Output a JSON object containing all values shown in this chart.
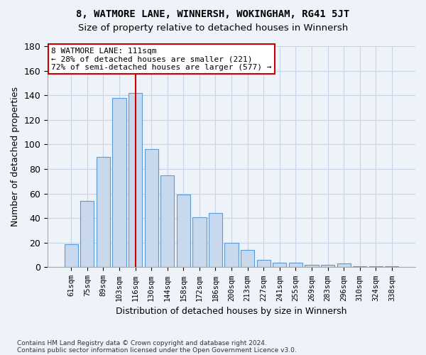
{
  "title1": "8, WATMORE LANE, WINNERSH, WOKINGHAM, RG41 5JT",
  "title2": "Size of property relative to detached houses in Winnersh",
  "xlabel": "Distribution of detached houses by size in Winnersh",
  "ylabel": "Number of detached properties",
  "categories": [
    "61sqm",
    "75sqm",
    "89sqm",
    "103sqm",
    "116sqm",
    "130sqm",
    "144sqm",
    "158sqm",
    "172sqm",
    "186sqm",
    "200sqm",
    "213sqm",
    "227sqm",
    "241sqm",
    "255sqm",
    "269sqm",
    "283sqm",
    "296sqm",
    "310sqm",
    "324sqm",
    "338sqm"
  ],
  "values": [
    19,
    54,
    90,
    138,
    142,
    96,
    75,
    59,
    41,
    44,
    20,
    14,
    6,
    4,
    4,
    2,
    2,
    3,
    1,
    1,
    1
  ],
  "bar_color": "#c9d9ed",
  "bar_edge_color": "#5b9bd5",
  "vline_x": 4,
  "annotation_line1": "8 WATMORE LANE: 111sqm",
  "annotation_line2": "← 28% of detached houses are smaller (221)",
  "annotation_line3": "72% of semi-detached houses are larger (577) →",
  "annotation_box_color": "#ffffff",
  "annotation_box_edge": "#cc0000",
  "vline_color": "#cc0000",
  "grid_color": "#c8d4e8",
  "bg_color": "#eef2f9",
  "footer1": "Contains HM Land Registry data © Crown copyright and database right 2024.",
  "footer2": "Contains public sector information licensed under the Open Government Licence v3.0.",
  "ylim": [
    0,
    180
  ],
  "yticks": [
    0,
    20,
    40,
    60,
    80,
    100,
    120,
    140,
    160,
    180
  ]
}
